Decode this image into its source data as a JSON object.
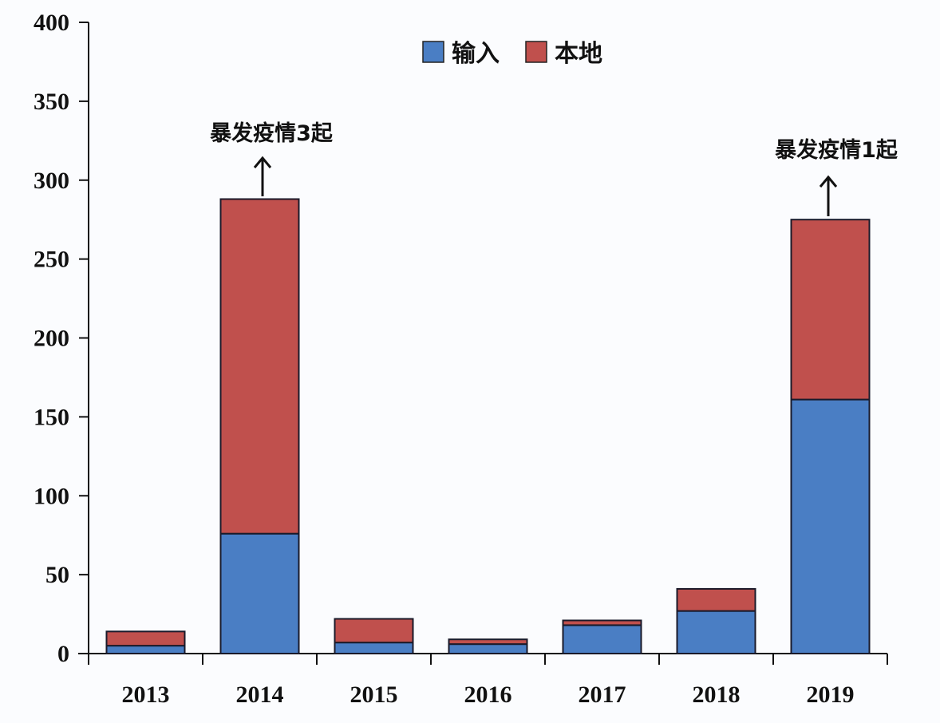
{
  "chart_data": {
    "type": "bar",
    "stacked": true,
    "title": "",
    "xlabel": "",
    "ylabel": "",
    "ylim": [
      0,
      400
    ],
    "yticks": [
      0,
      50,
      100,
      150,
      200,
      250,
      300,
      350,
      400
    ],
    "grid": false,
    "legend_position": "top-center",
    "categories": [
      "2013",
      "2014",
      "2015",
      "2016",
      "2017",
      "2018",
      "2019"
    ],
    "series": [
      {
        "name": "输入",
        "color": "#4a7ec4",
        "values": [
          5,
          76,
          7,
          6,
          18,
          27,
          161
        ]
      },
      {
        "name": "本地",
        "color": "#c0504d",
        "values": [
          9,
          212,
          15,
          3,
          3,
          14,
          114
        ]
      }
    ],
    "totals": [
      14,
      288,
      22,
      9,
      21,
      41,
      275
    ],
    "annotations": [
      {
        "category": "2014",
        "text": "暴发疫情3起",
        "arrow": "up"
      },
      {
        "category": "2019",
        "text": "暴发疫情1起",
        "arrow": "up"
      }
    ]
  }
}
